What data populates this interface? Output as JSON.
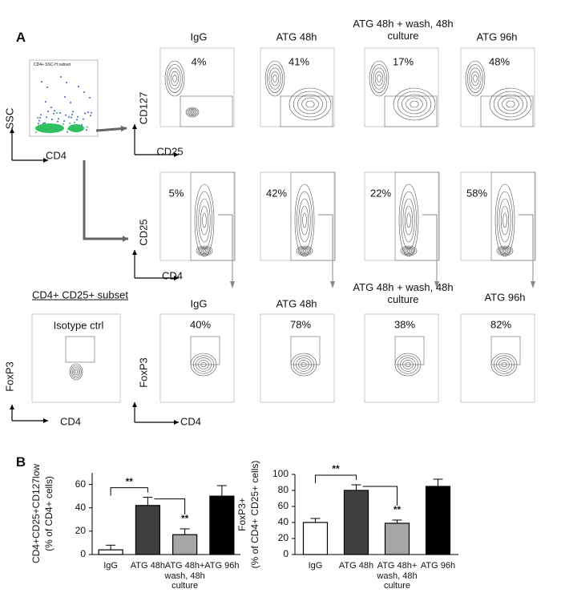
{
  "panel_a": {
    "label": "A",
    "gating": {
      "x_label": "CD4",
      "y_label": "SSC",
      "subset": "CD4+ SSC-H subset"
    },
    "row1": {
      "headers": [
        "IgG",
        "ATG 48h",
        "ATG 48h + wash, 48h culture",
        "ATG 96h"
      ],
      "y_label": "CD127",
      "x_label": "CD25",
      "gates": [
        "4%",
        "41%",
        "17%",
        "48%"
      ]
    },
    "row2": {
      "y_label": "CD25",
      "x_label": "CD4",
      "gates": [
        "5%",
        "42%",
        "22%",
        "58%"
      ]
    },
    "row3": {
      "subset_title": "CD4+ CD25+ subset",
      "isotype": "Isotype ctrl",
      "isotype_y_label": "FoxP3",
      "isotype_x_label": "CD4",
      "headers": [
        "IgG",
        "ATG 48h",
        "ATG 48h + wash, 48h culture",
        "ATG 96h"
      ],
      "y_label": "FoxP3",
      "x_label": "CD4",
      "gates": [
        "40%",
        "78%",
        "38%",
        "82%"
      ]
    }
  },
  "panel_b": {
    "label": "B"
  },
  "chart_data": [
    {
      "type": "bar",
      "y_label": [
        "CD4+CD25+CD127low",
        "(% of CD4+ cells)"
      ],
      "categories": [
        "IgG",
        "ATG 48h",
        "ATG 48h+ wash, 48h culture",
        "ATG 96h"
      ],
      "values": [
        4,
        42,
        17,
        50
      ],
      "errors": [
        4,
        7,
        5,
        9
      ],
      "colors": [
        "#ffffff",
        "#404040",
        "#a6a6a6",
        "#000000"
      ],
      "ylim": [
        0,
        70
      ],
      "yticks": [
        0,
        20,
        40,
        60
      ],
      "annotations": [
        "**",
        "**"
      ]
    },
    {
      "type": "bar",
      "y_label": [
        "FoxP3+",
        "(% of CD4+ CD25+ cells)"
      ],
      "categories": [
        "IgG",
        "ATG 48h",
        "ATG 48h+ wash, 48h culture",
        "ATG 96h"
      ],
      "values": [
        40,
        80,
        39,
        85
      ],
      "errors": [
        5,
        7,
        4,
        9
      ],
      "colors": [
        "#ffffff",
        "#404040",
        "#a6a6a6",
        "#000000"
      ],
      "ylim": [
        0,
        100
      ],
      "yticks": [
        0,
        20,
        40,
        60,
        80,
        100
      ],
      "annotations": [
        "**",
        "**"
      ]
    }
  ]
}
